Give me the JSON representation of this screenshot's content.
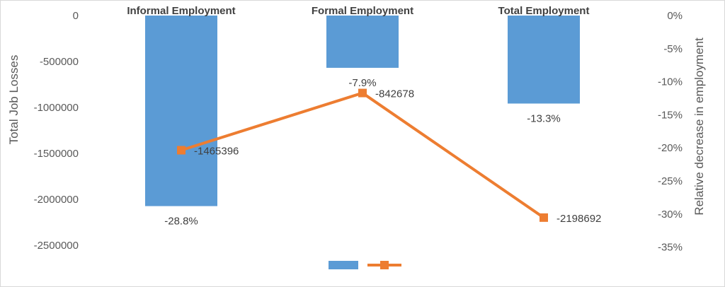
{
  "chart_data": {
    "type": "bar+line",
    "categories": [
      "Informal Employment",
      "Formal Employment",
      "Total Employment"
    ],
    "series": [
      {
        "type": "bar",
        "axis": "secondary",
        "values": [
          -28.8,
          -7.9,
          -13.3
        ],
        "labels": [
          "-28.8%",
          "-7.9%",
          "-13.3%"
        ],
        "color": "#5b9bd5"
      },
      {
        "type": "line",
        "axis": "primary",
        "values": [
          -1465396,
          -842678,
          -2198692
        ],
        "labels": [
          "-1465396",
          "-842678",
          "-2198692"
        ],
        "color": "#ed7d31",
        "marker": "square"
      }
    ],
    "ylabel": "Total Job Losses",
    "y2label": "Relative decrease in employment",
    "ylim": [
      -2700000,
      0
    ],
    "y2lim": [
      -37.5,
      0
    ],
    "yticks": [
      "0",
      "-500000",
      "-1000000",
      "-1500000",
      "-2000000",
      "-2500000"
    ],
    "yticks_values": [
      0,
      -500000,
      -1000000,
      -1500000,
      -2000000,
      -2500000
    ],
    "y2ticks": [
      "0%",
      "-5%",
      "-10%",
      "-15%",
      "-20%",
      "-25%",
      "-30%",
      "-35%"
    ],
    "y2ticks_values": [
      0,
      -5,
      -10,
      -15,
      -20,
      -25,
      -30,
      -35
    ],
    "grid": false,
    "legend": "bottom"
  }
}
